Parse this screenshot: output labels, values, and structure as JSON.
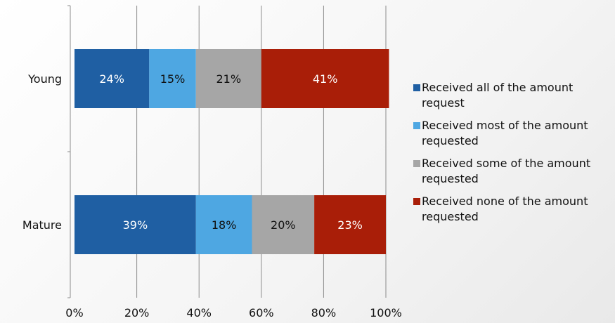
{
  "chart_data": {
    "type": "bar",
    "orientation": "horizontal",
    "stacked": true,
    "categories": [
      "Young",
      "Mature"
    ],
    "series": [
      {
        "name": "Received all of the amount request",
        "values": [
          24,
          39
        ],
        "labels": [
          "24%",
          "39%"
        ],
        "color": "#1f5fa3",
        "label_color": "#ffffff"
      },
      {
        "name": "Received most of the amount requested",
        "values": [
          15,
          18
        ],
        "labels": [
          "15%",
          "18%"
        ],
        "color": "#4ea7e2",
        "label_color": "#111111"
      },
      {
        "name": "Received some of the amount requested",
        "values": [
          21,
          20
        ],
        "labels": [
          "21%",
          "20%"
        ],
        "color": "#a6a6a6",
        "label_color": "#111111"
      },
      {
        "name": "Received none of the amount requested",
        "values": [
          41,
          23
        ],
        "labels": [
          "41%",
          "23%"
        ],
        "color": "#a91e08",
        "label_color": "#ffffff"
      }
    ],
    "xlim": [
      0,
      100
    ],
    "x_ticks": [
      "0%",
      "20%",
      "40%",
      "60%",
      "80%",
      "100%"
    ],
    "grid": true,
    "legend_position": "right"
  }
}
